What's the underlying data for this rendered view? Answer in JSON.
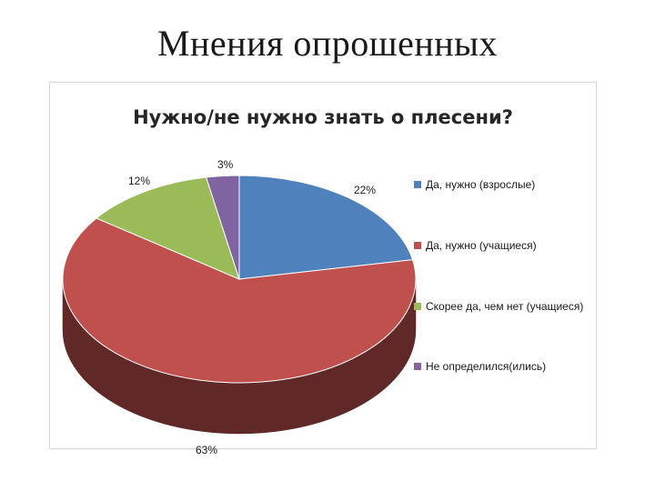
{
  "slide": {
    "title": "Мнения опрошенных"
  },
  "chart_data": {
    "type": "pie",
    "style": "3d",
    "title": "Нужно/не нужно знать о плесени?",
    "legend_position": "right",
    "labels": [
      "Да, нужно (взрослые)",
      "Да, нужно (учащиеся)",
      "Скорее да, чем нет (учащиеся)",
      "Не определился(ились)"
    ],
    "values": [
      22,
      63,
      12,
      3
    ],
    "value_labels": [
      "22%",
      "63%",
      "12%",
      "3%"
    ],
    "colors": [
      "#4f81bd",
      "#c0504d",
      "#9bbb59",
      "#8064a2"
    ]
  }
}
